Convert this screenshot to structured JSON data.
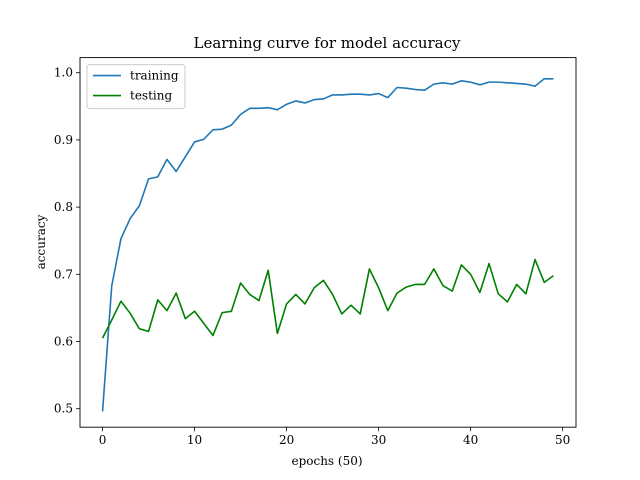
{
  "chart_data": {
    "type": "line",
    "title": "Learning curve for model accuracy",
    "xlabel": "epochs (50)",
    "ylabel": "accuracy",
    "xlim": [
      -2.45,
      51.45
    ],
    "ylim": [
      0.4725,
      1.0225
    ],
    "xticks": [
      0,
      10,
      20,
      30,
      40,
      50
    ],
    "yticks": [
      0.5,
      0.6,
      0.7,
      0.8,
      0.9,
      1.0
    ],
    "xtick_labels": [
      "0",
      "10",
      "20",
      "30",
      "40",
      "50"
    ],
    "ytick_labels": [
      "0.5",
      "0.6",
      "0.7",
      "0.8",
      "0.9",
      "1.0"
    ],
    "grid": false,
    "legend_position": "top-left",
    "x": [
      0,
      1,
      2,
      3,
      4,
      5,
      6,
      7,
      8,
      9,
      10,
      11,
      12,
      13,
      14,
      15,
      16,
      17,
      18,
      19,
      20,
      21,
      22,
      23,
      24,
      25,
      26,
      27,
      28,
      29,
      30,
      31,
      32,
      33,
      34,
      35,
      36,
      37,
      38,
      39,
      40,
      41,
      42,
      43,
      44,
      45,
      46,
      47,
      48,
      49
    ],
    "series": [
      {
        "name": "training",
        "color": "#1f77b4",
        "values": [
          0.496,
          0.683,
          0.753,
          0.783,
          0.802,
          0.842,
          0.845,
          0.871,
          0.853,
          0.875,
          0.897,
          0.901,
          0.915,
          0.916,
          0.922,
          0.938,
          0.947,
          0.947,
          0.948,
          0.945,
          0.953,
          0.958,
          0.955,
          0.96,
          0.961,
          0.967,
          0.967,
          0.968,
          0.968,
          0.967,
          0.969,
          0.963,
          0.978,
          0.977,
          0.975,
          0.974,
          0.983,
          0.985,
          0.983,
          0.988,
          0.986,
          0.982,
          0.986,
          0.986,
          0.985,
          0.984,
          0.983,
          0.98,
          0.991,
          0.991
        ]
      },
      {
        "name": "testing",
        "color": "#008000",
        "values": [
          0.605,
          0.632,
          0.66,
          0.642,
          0.619,
          0.615,
          0.662,
          0.646,
          0.672,
          0.634,
          0.645,
          0.627,
          0.609,
          0.643,
          0.645,
          0.687,
          0.67,
          0.661,
          0.706,
          0.612,
          0.656,
          0.67,
          0.656,
          0.68,
          0.691,
          0.67,
          0.641,
          0.654,
          0.641,
          0.708,
          0.68,
          0.646,
          0.672,
          0.681,
          0.685,
          0.685,
          0.708,
          0.683,
          0.675,
          0.714,
          0.7,
          0.673,
          0.716,
          0.671,
          0.659,
          0.685,
          0.671,
          0.722,
          0.688,
          0.698
        ]
      }
    ]
  }
}
